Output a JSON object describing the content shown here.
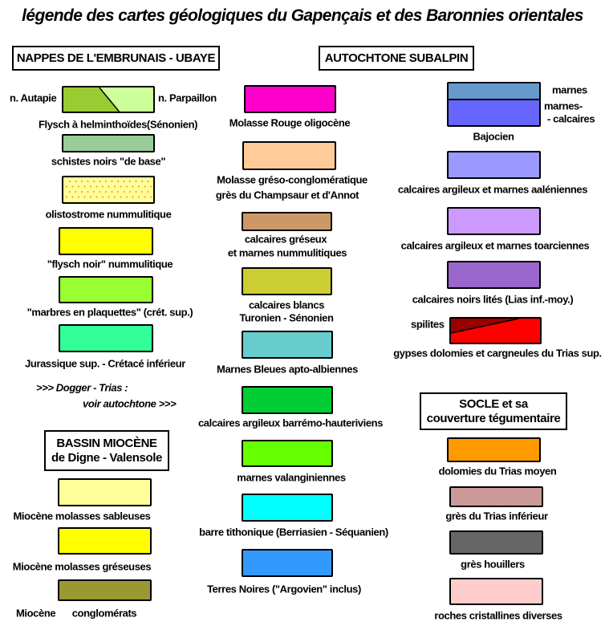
{
  "title": "légende des cartes géologiques du Gapençais et des Baronnies orientales",
  "headers": {
    "nappes": "NAPPES DE L'EMBRUNAIS - UBAYE",
    "autochtone": "AUTOCHTONE  SUBALPIN",
    "bassin": [
      "BASSIN MIOCÈNE",
      "de Digne - Valensole"
    ],
    "socle": [
      "SOCLE et sa",
      "couverture tégumentaire"
    ]
  },
  "dogger_note": [
    ">>> Dogger - Trias :",
    "voir autochtone >>>"
  ],
  "items": [
    {
      "labels": [
        "Flysch à helminthoïdes(Sénonien)"
      ],
      "side_labels": [
        "n. Autapie",
        "n. Parpaillon"
      ],
      "colors": [
        "#99cc33",
        "#ccff99"
      ],
      "pattern": "diagonal-split"
    },
    {
      "labels": [
        "schistes noirs \"de base\""
      ],
      "colors": [
        "#99cc99"
      ]
    },
    {
      "labels": [
        "olistostrome nummulitique"
      ],
      "colors": [
        "#ffff99",
        "#ff9933"
      ],
      "pattern": "dots"
    },
    {
      "labels": [
        "\"flysch noir\"  nummulitique"
      ],
      "colors": [
        "#ffff00"
      ]
    },
    {
      "labels": [
        "\"marbres en plaquettes\" (crét. sup.)"
      ],
      "colors": [
        "#99ff33"
      ]
    },
    {
      "labels": [
        "Jurassique sup. - Crétacé inférieur"
      ],
      "colors": [
        "#33ff99"
      ]
    },
    {
      "labels": [
        "Miocène  molasses sableuses"
      ],
      "colors": [
        "#ffff99"
      ]
    },
    {
      "labels": [
        "Miocène  molasses gréseuses"
      ],
      "colors": [
        "#ffff00"
      ]
    },
    {
      "labels": [
        "conglomérats"
      ],
      "side_labels": [
        "Miocène"
      ],
      "colors": [
        "#999933"
      ]
    },
    {
      "labels": [
        "Molasse Rouge oligocène"
      ],
      "colors": [
        "#ff00cc"
      ]
    },
    {
      "labels": [
        "Molasse  gréso-conglomératique",
        "grès du Champsaur et d'Annot"
      ],
      "colors": [
        "#ffcc99"
      ]
    },
    {
      "labels": [
        "calcaires  gréseux",
        "et marnes  nummulitiques"
      ],
      "colors": [
        "#cc9966"
      ]
    },
    {
      "labels": [
        "calcaires blancs",
        "Turonien  -  Sénonien"
      ],
      "colors": [
        "#cccc33"
      ]
    },
    {
      "labels": [
        "Marnes Bleues  apto-albiennes"
      ],
      "colors": [
        "#66cccc"
      ]
    },
    {
      "labels": [
        "calcaires  argileux  barrémo-hauteriviens"
      ],
      "colors": [
        "#00cc33"
      ]
    },
    {
      "labels": [
        "marnes valanginiennes"
      ],
      "colors": [
        "#66ff00"
      ]
    },
    {
      "labels": [
        "barre tithonique (Berriasien - Séquanien)"
      ],
      "colors": [
        "#00ffff"
      ]
    },
    {
      "labels": [
        "Terres Noires (\"Argovien\" inclus)"
      ],
      "colors": [
        "#3399ff"
      ]
    },
    {
      "labels": [
        "Bajocien"
      ],
      "side_labels": [
        "marnes",
        "marnes-",
        "- calcaires"
      ],
      "colors": [
        "#6699cc",
        "#6666ff"
      ],
      "pattern": "two-bands"
    },
    {
      "labels": [
        "calcaires argileux  et  marnes aaléniennes"
      ],
      "colors": [
        "#9999ff"
      ]
    },
    {
      "labels": [
        "calcaires argileux et marnes toarciennes"
      ],
      "colors": [
        "#cc99ff"
      ]
    },
    {
      "labels": [
        "calcaires noirs lités (Lias inf.-moy.)"
      ],
      "colors": [
        "#9966cc"
      ]
    },
    {
      "labels": [
        "gypses  dolomies  et  cargneules du Trias sup."
      ],
      "side_labels": [
        "spilites"
      ],
      "colors": [
        "#990000",
        "#ff0000"
      ],
      "pattern": "diagonal-top"
    },
    {
      "labels": [
        "dolomies  du Trias moyen"
      ],
      "colors": [
        "#ff9900"
      ]
    },
    {
      "labels": [
        "grès  du  Trias inférieur"
      ],
      "colors": [
        "#cc9999"
      ]
    },
    {
      "labels": [
        "grès  houillers"
      ],
      "colors": [
        "#666666"
      ]
    },
    {
      "labels": [
        "roches cristallines  diverses"
      ],
      "colors": [
        "#ffcccc"
      ]
    }
  ]
}
